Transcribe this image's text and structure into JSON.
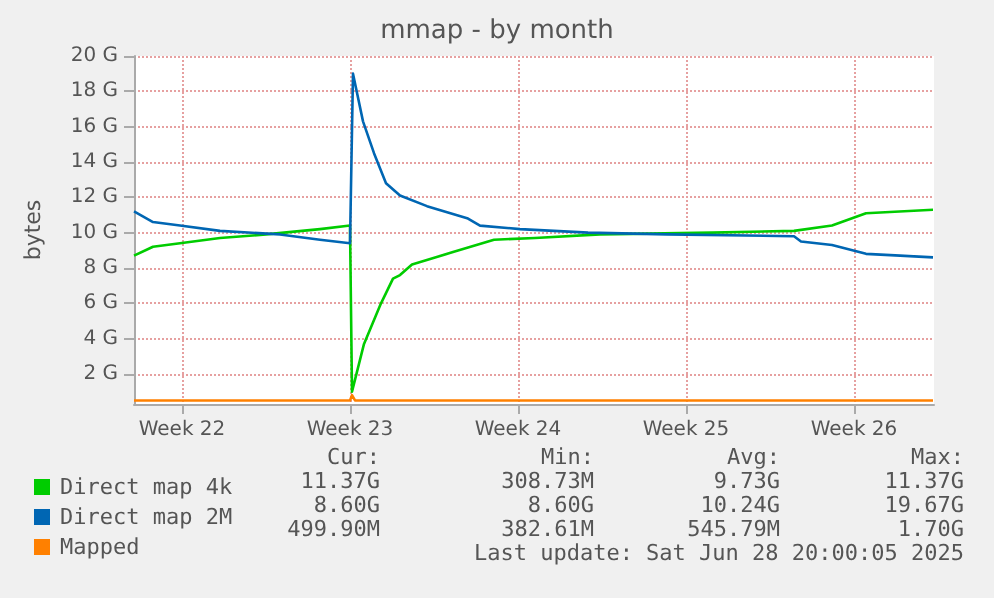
{
  "chart_data": {
    "type": "line",
    "title": "mmap - by month",
    "ylabel": "bytes",
    "xlim": [
      "2025-05-26T12:00",
      "2025-06-28T20:00"
    ],
    "xticks": [
      {
        "value": "2025-05-28T12:00",
        "label": "Week 22"
      },
      {
        "value": "2025-06-04T12:00",
        "label": "Week 23"
      },
      {
        "value": "2025-06-11T12:00",
        "label": "Week 24"
      },
      {
        "value": "2025-06-18T12:00",
        "label": "Week 25"
      },
      {
        "value": "2025-06-25T12:00",
        "label": "Week 26"
      }
    ],
    "ylim": [
      0.3,
      20
    ],
    "yticks": [
      {
        "value": 2,
        "label": "2 G"
      },
      {
        "value": 4,
        "label": "4 G"
      },
      {
        "value": 6,
        "label": "6 G"
      },
      {
        "value": 8,
        "label": "8 G"
      },
      {
        "value": 10,
        "label": "10 G"
      },
      {
        "value": 12,
        "label": "12 G"
      },
      {
        "value": 14,
        "label": "14 G"
      },
      {
        "value": 16,
        "label": "16 G"
      },
      {
        "value": 18,
        "label": "18 G"
      },
      {
        "value": 20,
        "label": "20 G"
      }
    ],
    "grid": true,
    "legend": "bottom left",
    "marker": "none",
    "line_style": "solid",
    "series": [
      {
        "name": "Direct map 4k",
        "color": "#00cc00",
        "x": [
          "2025-05-26T12:00",
          "2025-05-27T07:00",
          "2025-05-28T10:00",
          "2025-05-30T02:00",
          "2025-06-01T00:00",
          "2025-06-03T06:00",
          "2025-06-04T12:00",
          "2025-06-04T14:00",
          "2025-06-05T02:00",
          "2025-06-05T19:00",
          "2025-06-06T07:00",
          "2025-06-06T14:00",
          "2025-06-07T02:00",
          "2025-06-08T19:00",
          "2025-06-10T12:00",
          "2025-06-12T05:00",
          "2025-06-14T22:00",
          "2025-06-19T14:00",
          "2025-06-23T00:00",
          "2025-06-24T14:00",
          "2025-06-26T00:00",
          "2025-06-28T19:00"
        ],
        "values": [
          8.7,
          9.2,
          9.4,
          9.7,
          9.9,
          10.2,
          10.4,
          1.0,
          3.7,
          6.0,
          7.4,
          7.6,
          8.2,
          8.9,
          9.6,
          9.7,
          9.9,
          10.0,
          10.1,
          10.4,
          11.1,
          11.3
        ]
      },
      {
        "name": "Direct map 2M",
        "color": "#0066b3",
        "x": [
          "2025-05-26T12:00",
          "2025-05-27T07:00",
          "2025-05-28T10:00",
          "2025-05-30T02:00",
          "2025-06-01T14:00",
          "2025-06-03T06:00",
          "2025-06-04T12:00",
          "2025-06-04T15:00",
          "2025-06-05T01:00",
          "2025-06-05T12:00",
          "2025-06-06T00:00",
          "2025-06-06T14:00",
          "2025-06-07T17:00",
          "2025-06-09T10:00",
          "2025-06-09T22:00",
          "2025-06-11T14:00",
          "2025-06-14T10:00",
          "2025-06-17T17:00",
          "2025-06-23T00:00",
          "2025-06-23T07:00",
          "2025-06-24T14:00",
          "2025-06-26T00:00",
          "2025-06-27T10:00",
          "2025-06-28T19:00"
        ],
        "values": [
          11.2,
          10.6,
          10.4,
          10.1,
          9.9,
          9.6,
          9.4,
          19.0,
          16.3,
          14.5,
          12.8,
          12.1,
          11.5,
          10.8,
          10.4,
          10.2,
          10.0,
          9.9,
          9.8,
          9.5,
          9.3,
          8.8,
          8.7,
          8.6
        ]
      },
      {
        "name": "Mapped",
        "color": "#ff8000",
        "x": [
          "2025-05-26T12:00",
          "2025-06-04T12:00",
          "2025-06-04T14:00",
          "2025-06-04T17:00",
          "2025-06-28T19:00"
        ],
        "values": [
          0.5,
          0.5,
          0.8,
          0.5,
          0.5
        ]
      }
    ],
    "annotations": [
      "Cur:",
      "Min:",
      "Avg:",
      "Max:",
      "11.37G",
      "308.73M",
      "9.73G",
      "11.37G",
      "8.60G",
      "8.60G",
      "10.24G",
      "19.67G",
      "499.90M",
      "382.61M",
      "545.79M",
      "1.70G",
      "Last update: Sat Jun 28 20:00:05 2025"
    ]
  }
}
